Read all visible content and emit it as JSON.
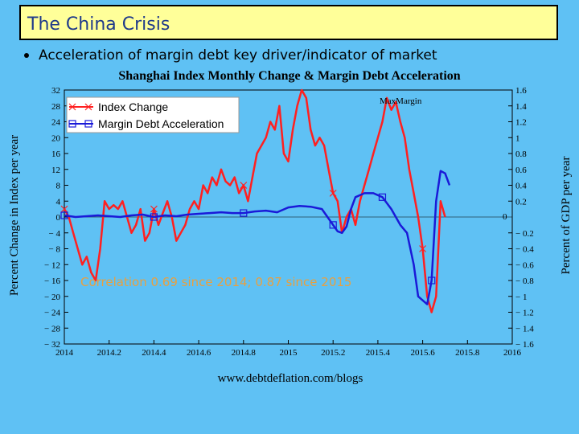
{
  "slide": {
    "title": "The China Crisis",
    "bullet": "Acceleration of margin debt key driver/indicator of market"
  },
  "chart_data": {
    "type": "line",
    "title": "Shanghai Index Monthly Change & Margin Debt Acceleration",
    "xlabel": "",
    "ylabel_left": "Percent Change in Index per year",
    "ylabel_right": "Percent of GDP per year",
    "source": "www.debtdeflation.com/blogs",
    "annotation": "Correlation 0.69 since 2014; 0.87 since 2015",
    "max_label": "MaxMargin",
    "zero_label_right": "0",
    "xlim": [
      2014,
      2016
    ],
    "x_ticks": [
      2014,
      2014.2,
      2014.4,
      2014.6,
      2014.8,
      2015,
      2015.2,
      2015.4,
      2015.6,
      2015.8,
      2016
    ],
    "x_tick_labels": [
      "2014",
      "2014.2",
      "2014.4",
      "2014.6",
      "2014.8",
      "2015",
      "2015.2",
      "2015.4",
      "2015.6",
      "2015.8",
      "2016"
    ],
    "y_left_lim": [
      -32,
      32
    ],
    "y_left_ticks": [
      32,
      28,
      24,
      20,
      16,
      12,
      8,
      4,
      0,
      -4,
      -8,
      -12,
      -16,
      -20,
      -24,
      -28,
      -32
    ],
    "y_left_tick_labels": [
      "32",
      "28",
      "24",
      "20",
      "16",
      "12",
      "8",
      "4",
      "0",
      "− 4",
      "− 8",
      "− 12",
      "− 16",
      "− 20",
      "− 24",
      "− 28",
      "− 32"
    ],
    "y_right_lim": [
      -1.6,
      1.6
    ],
    "y_right_ticks": [
      1.6,
      1.4,
      1.2,
      1,
      0.8,
      0.6,
      0.4,
      0.2,
      -0.2,
      -0.4,
      -0.6,
      -0.8,
      -1,
      -1.2,
      -1.4,
      -1.6
    ],
    "y_right_tick_labels": [
      "1.6",
      "1.4",
      "1.2",
      "1",
      "0.8",
      "0.6",
      "0.4",
      "0.2",
      "− 0.2",
      "− 0.4",
      "− 0.6",
      "− 0.8",
      "− 1",
      "− 1.2",
      "− 1.4",
      "− 1.6"
    ],
    "colors": {
      "index": "#ff2020",
      "margin": "#1a1ad8",
      "annotation": "#e8a040"
    },
    "series": [
      {
        "name": "Index Change",
        "axis": "left",
        "x": [
          2014.0,
          2014.02,
          2014.04,
          2014.06,
          2014.08,
          2014.1,
          2014.12,
          2014.14,
          2014.16,
          2014.18,
          2014.2,
          2014.22,
          2014.24,
          2014.26,
          2014.28,
          2014.3,
          2014.32,
          2014.34,
          2014.36,
          2014.38,
          2014.4,
          2014.42,
          2014.44,
          2014.46,
          2014.48,
          2014.5,
          2014.52,
          2014.54,
          2014.56,
          2014.58,
          2014.6,
          2014.62,
          2014.64,
          2014.66,
          2014.68,
          2014.7,
          2014.72,
          2014.74,
          2014.76,
          2014.78,
          2014.8,
          2014.82,
          2014.84,
          2014.86,
          2014.88,
          2014.9,
          2014.92,
          2014.94,
          2014.96,
          2014.98,
          2015.0,
          2015.02,
          2015.04,
          2015.06,
          2015.08,
          2015.1,
          2015.12,
          2015.14,
          2015.16,
          2015.18,
          2015.2,
          2015.22,
          2015.24,
          2015.26,
          2015.28,
          2015.3,
          2015.32,
          2015.34,
          2015.36,
          2015.38,
          2015.4,
          2015.42,
          2015.44,
          2015.46,
          2015.48,
          2015.5,
          2015.52,
          2015.54,
          2015.56,
          2015.58,
          2015.6,
          2015.62,
          2015.64,
          2015.66,
          2015.68,
          2015.7
        ],
        "values": [
          2,
          0,
          -4,
          -8,
          -12,
          -10,
          -14,
          -16,
          -8,
          4,
          2,
          3,
          2,
          4,
          0,
          -4,
          -2,
          2,
          -6,
          -4,
          2,
          -2,
          1,
          4,
          0,
          -6,
          -4,
          -2,
          2,
          4,
          2,
          8,
          6,
          10,
          8,
          12,
          9,
          8,
          10,
          6,
          8,
          4,
          10,
          16,
          18,
          20,
          24,
          22,
          28,
          16,
          14,
          22,
          28,
          32,
          30,
          22,
          18,
          20,
          18,
          12,
          6,
          4,
          -4,
          0,
          2,
          -2,
          4,
          8,
          12,
          16,
          20,
          24,
          30,
          27,
          29,
          24,
          20,
          12,
          6,
          0,
          -8,
          -20,
          -24,
          -20,
          4,
          0
        ]
      },
      {
        "name": "Margin Debt Acceleration",
        "axis": "right",
        "x": [
          2014.0,
          2014.05,
          2014.1,
          2014.15,
          2014.2,
          2014.25,
          2014.3,
          2014.35,
          2014.4,
          2014.45,
          2014.5,
          2014.55,
          2014.6,
          2014.65,
          2014.7,
          2014.75,
          2014.8,
          2014.85,
          2014.9,
          2014.95,
          2015.0,
          2015.05,
          2015.1,
          2015.15,
          2015.2,
          2015.22,
          2015.24,
          2015.26,
          2015.28,
          2015.3,
          2015.34,
          2015.38,
          2015.42,
          2015.46,
          2015.5,
          2015.53,
          2015.56,
          2015.58,
          2015.6,
          2015.62,
          2015.64,
          2015.66,
          2015.68,
          2015.7,
          2015.72
        ],
        "values": [
          0.02,
          0.0,
          0.01,
          0.02,
          0.01,
          0.0,
          0.02,
          0.03,
          0.0,
          0.02,
          0.01,
          0.03,
          0.04,
          0.05,
          0.06,
          0.05,
          0.05,
          0.07,
          0.08,
          0.06,
          0.12,
          0.14,
          0.13,
          0.1,
          -0.1,
          -0.18,
          -0.2,
          -0.12,
          0.1,
          0.25,
          0.3,
          0.3,
          0.25,
          0.1,
          -0.1,
          -0.2,
          -0.6,
          -1.0,
          -1.05,
          -1.1,
          -0.8,
          0.2,
          0.58,
          0.55,
          0.4
        ]
      }
    ]
  }
}
